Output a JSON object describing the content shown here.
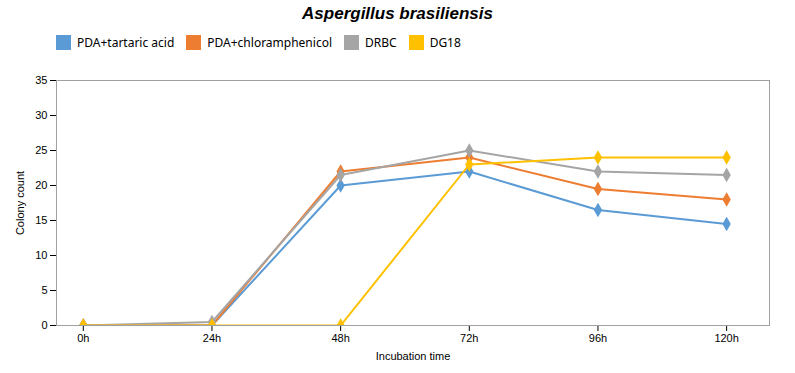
{
  "chart_data": {
    "type": "line",
    "title": "Aspergillus brasiliensis",
    "xlabel": "Incubation time",
    "ylabel": "Colony count",
    "x": [
      0,
      24,
      48,
      72,
      96,
      120
    ],
    "xlim": [
      -5,
      128
    ],
    "xticks": [
      {
        "value": 0,
        "label": "0h"
      },
      {
        "value": 24,
        "label": "24h"
      },
      {
        "value": 48,
        "label": "48h"
      },
      {
        "value": 72,
        "label": "72h"
      },
      {
        "value": 96,
        "label": "96h"
      },
      {
        "value": 120,
        "label": "120h"
      }
    ],
    "ylim": [
      0,
      35
    ],
    "yticks": [
      0,
      5,
      10,
      15,
      20,
      25,
      30,
      35
    ],
    "grid": false,
    "legend": "upper left",
    "series": [
      {
        "name": "PDA+tartaric acid",
        "color": "#5B9BD5",
        "marker": "diamond",
        "values": [
          0,
          0,
          20,
          22,
          16.5,
          14.5
        ]
      },
      {
        "name": "PDA+chloramphenicol",
        "color": "#ED7D31",
        "marker": "diamond",
        "values": [
          0,
          0,
          22,
          24,
          19.5,
          18
        ]
      },
      {
        "name": "DRBC",
        "color": "#A5A5A5",
        "marker": "diamond",
        "values": [
          0,
          0.5,
          21.5,
          25,
          22,
          21.5
        ]
      },
      {
        "name": "DG18",
        "color": "#FFC000",
        "marker": "diamond",
        "values": [
          0,
          0,
          0,
          23,
          24,
          24
        ]
      }
    ]
  }
}
